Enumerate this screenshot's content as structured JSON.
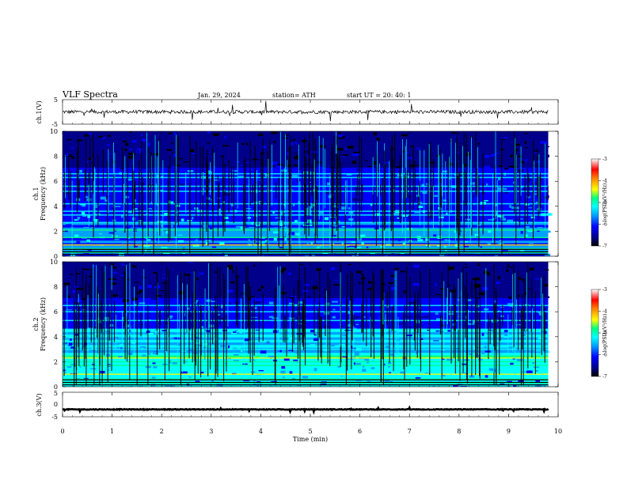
{
  "header": {
    "title": "VLF  Spectra",
    "date": "Jan.  29,  2024",
    "station": "station= ATH",
    "start_time": "start  UT  =    20: 40: 1"
  },
  "chart_data": [
    {
      "type": "line",
      "name": "ch1-waveform",
      "ylabel": "ch.1(V)",
      "ylim": [
        -5,
        5
      ],
      "yticks": [
        "5",
        "-5"
      ],
      "xlim": [
        0,
        10
      ],
      "baseline": 0,
      "signal_duration_min": 9.8
    },
    {
      "type": "heatmap",
      "name": "ch1-spectrogram",
      "ylabel": "ch.1\nFrequency  (kHz)",
      "ylim": [
        0,
        10
      ],
      "yticks": [
        "0",
        "2",
        "4",
        "6",
        "8",
        "10"
      ],
      "xlim": [
        0,
        10
      ],
      "colorbar": {
        "label": "log(PSD)(V²/Hz)",
        "range": [
          -7,
          -3
        ],
        "ticks": [
          "-3",
          "-4",
          "-5",
          "-6",
          "-7"
        ]
      },
      "bands_khz": [
        0.3,
        0.6,
        0.9,
        1.5,
        2.1,
        2.7,
        3.3,
        3.6,
        4.2,
        5.2,
        5.6,
        6.3,
        6.6
      ]
    },
    {
      "type": "heatmap",
      "name": "ch2-spectrogram",
      "ylabel": "ch.2\nFrequency  (kHz)",
      "ylim": [
        0,
        10
      ],
      "yticks": [
        "0",
        "2",
        "4",
        "6",
        "8",
        "10"
      ],
      "xlim": [
        0,
        10
      ],
      "colorbar": {
        "label": "log(PSD)(V²/Hz)",
        "range": [
          -7,
          -3
        ],
        "ticks": [
          "-3",
          "-4",
          "-5",
          "-6",
          "-7"
        ]
      },
      "bands_khz": [
        0.3,
        0.6,
        1.0,
        1.7,
        2.0,
        2.3,
        3.0,
        3.6,
        4.0,
        4.6,
        5.3,
        6.0,
        6.5
      ]
    },
    {
      "type": "line",
      "name": "ch3-waveform",
      "ylabel": "ch.3(V)",
      "ylim": [
        -5,
        5
      ],
      "yticks": [
        "5",
        "0",
        "-5"
      ],
      "xlim": [
        0,
        10
      ],
      "baseline": -2,
      "signal_duration_min": 9.8
    }
  ],
  "xaxis": {
    "label": "Time  (min)",
    "ticks": [
      "0",
      "1",
      "2",
      "3",
      "4",
      "5",
      "6",
      "7",
      "8",
      "9",
      "10"
    ]
  },
  "colors": {
    "frame": "#000000",
    "waveform": "#000000",
    "colormap": [
      "#000000",
      "#00008b",
      "#0000ff",
      "#00a0ff",
      "#00ffff",
      "#00ff80",
      "#ffff00",
      "#ff8000",
      "#ff0000",
      "#ffffff"
    ]
  }
}
